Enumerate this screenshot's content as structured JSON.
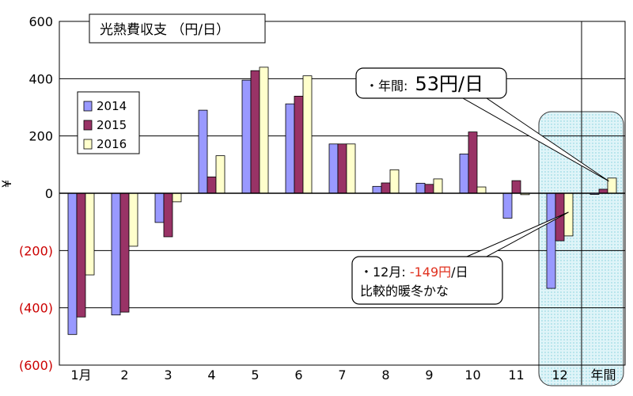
{
  "chart_data": {
    "type": "bar",
    "title": "光熱費収支 （円/日）",
    "ylabel": "¥",
    "ylim": [
      -600,
      600
    ],
    "yticks": [
      600,
      400,
      200,
      0,
      -200,
      -400,
      -600
    ],
    "ytick_labels": [
      "600",
      "400",
      "200",
      "0",
      "(200)",
      "(400)",
      "(600)"
    ],
    "categories": [
      "1月",
      "2",
      "3",
      "4",
      "5",
      "6",
      "7",
      "8",
      "9",
      "10",
      "11",
      "12",
      "年間"
    ],
    "series": [
      {
        "name": "2014",
        "color": "#9999ff",
        "values": [
          -493,
          -425,
          -102,
          290,
          395,
          312,
          172,
          24,
          35,
          137,
          -87,
          -332,
          -4
        ]
      },
      {
        "name": "2015",
        "color": "#993366",
        "values": [
          -432,
          -415,
          -152,
          57,
          428,
          339,
          172,
          36,
          31,
          214,
          44,
          -166,
          14
        ]
      },
      {
        "name": "2016",
        "color": "#ffffcc",
        "values": [
          -285,
          -185,
          -30,
          131,
          440,
          410,
          172,
          82,
          50,
          22,
          -5,
          -149,
          53
        ]
      }
    ],
    "grid": true,
    "legend_position": "upper-left",
    "highlight_categories": [
      "12",
      "年間"
    ],
    "annotations": [
      {
        "prefix": "・年間: ",
        "value": "53円/日",
        "category": "年間",
        "series": "2016"
      },
      {
        "prefix": "・12月: ",
        "value": "-149円",
        "suffix": "/日",
        "line2": "比較的暖冬かな",
        "category": "12",
        "series": "2016"
      }
    ]
  }
}
